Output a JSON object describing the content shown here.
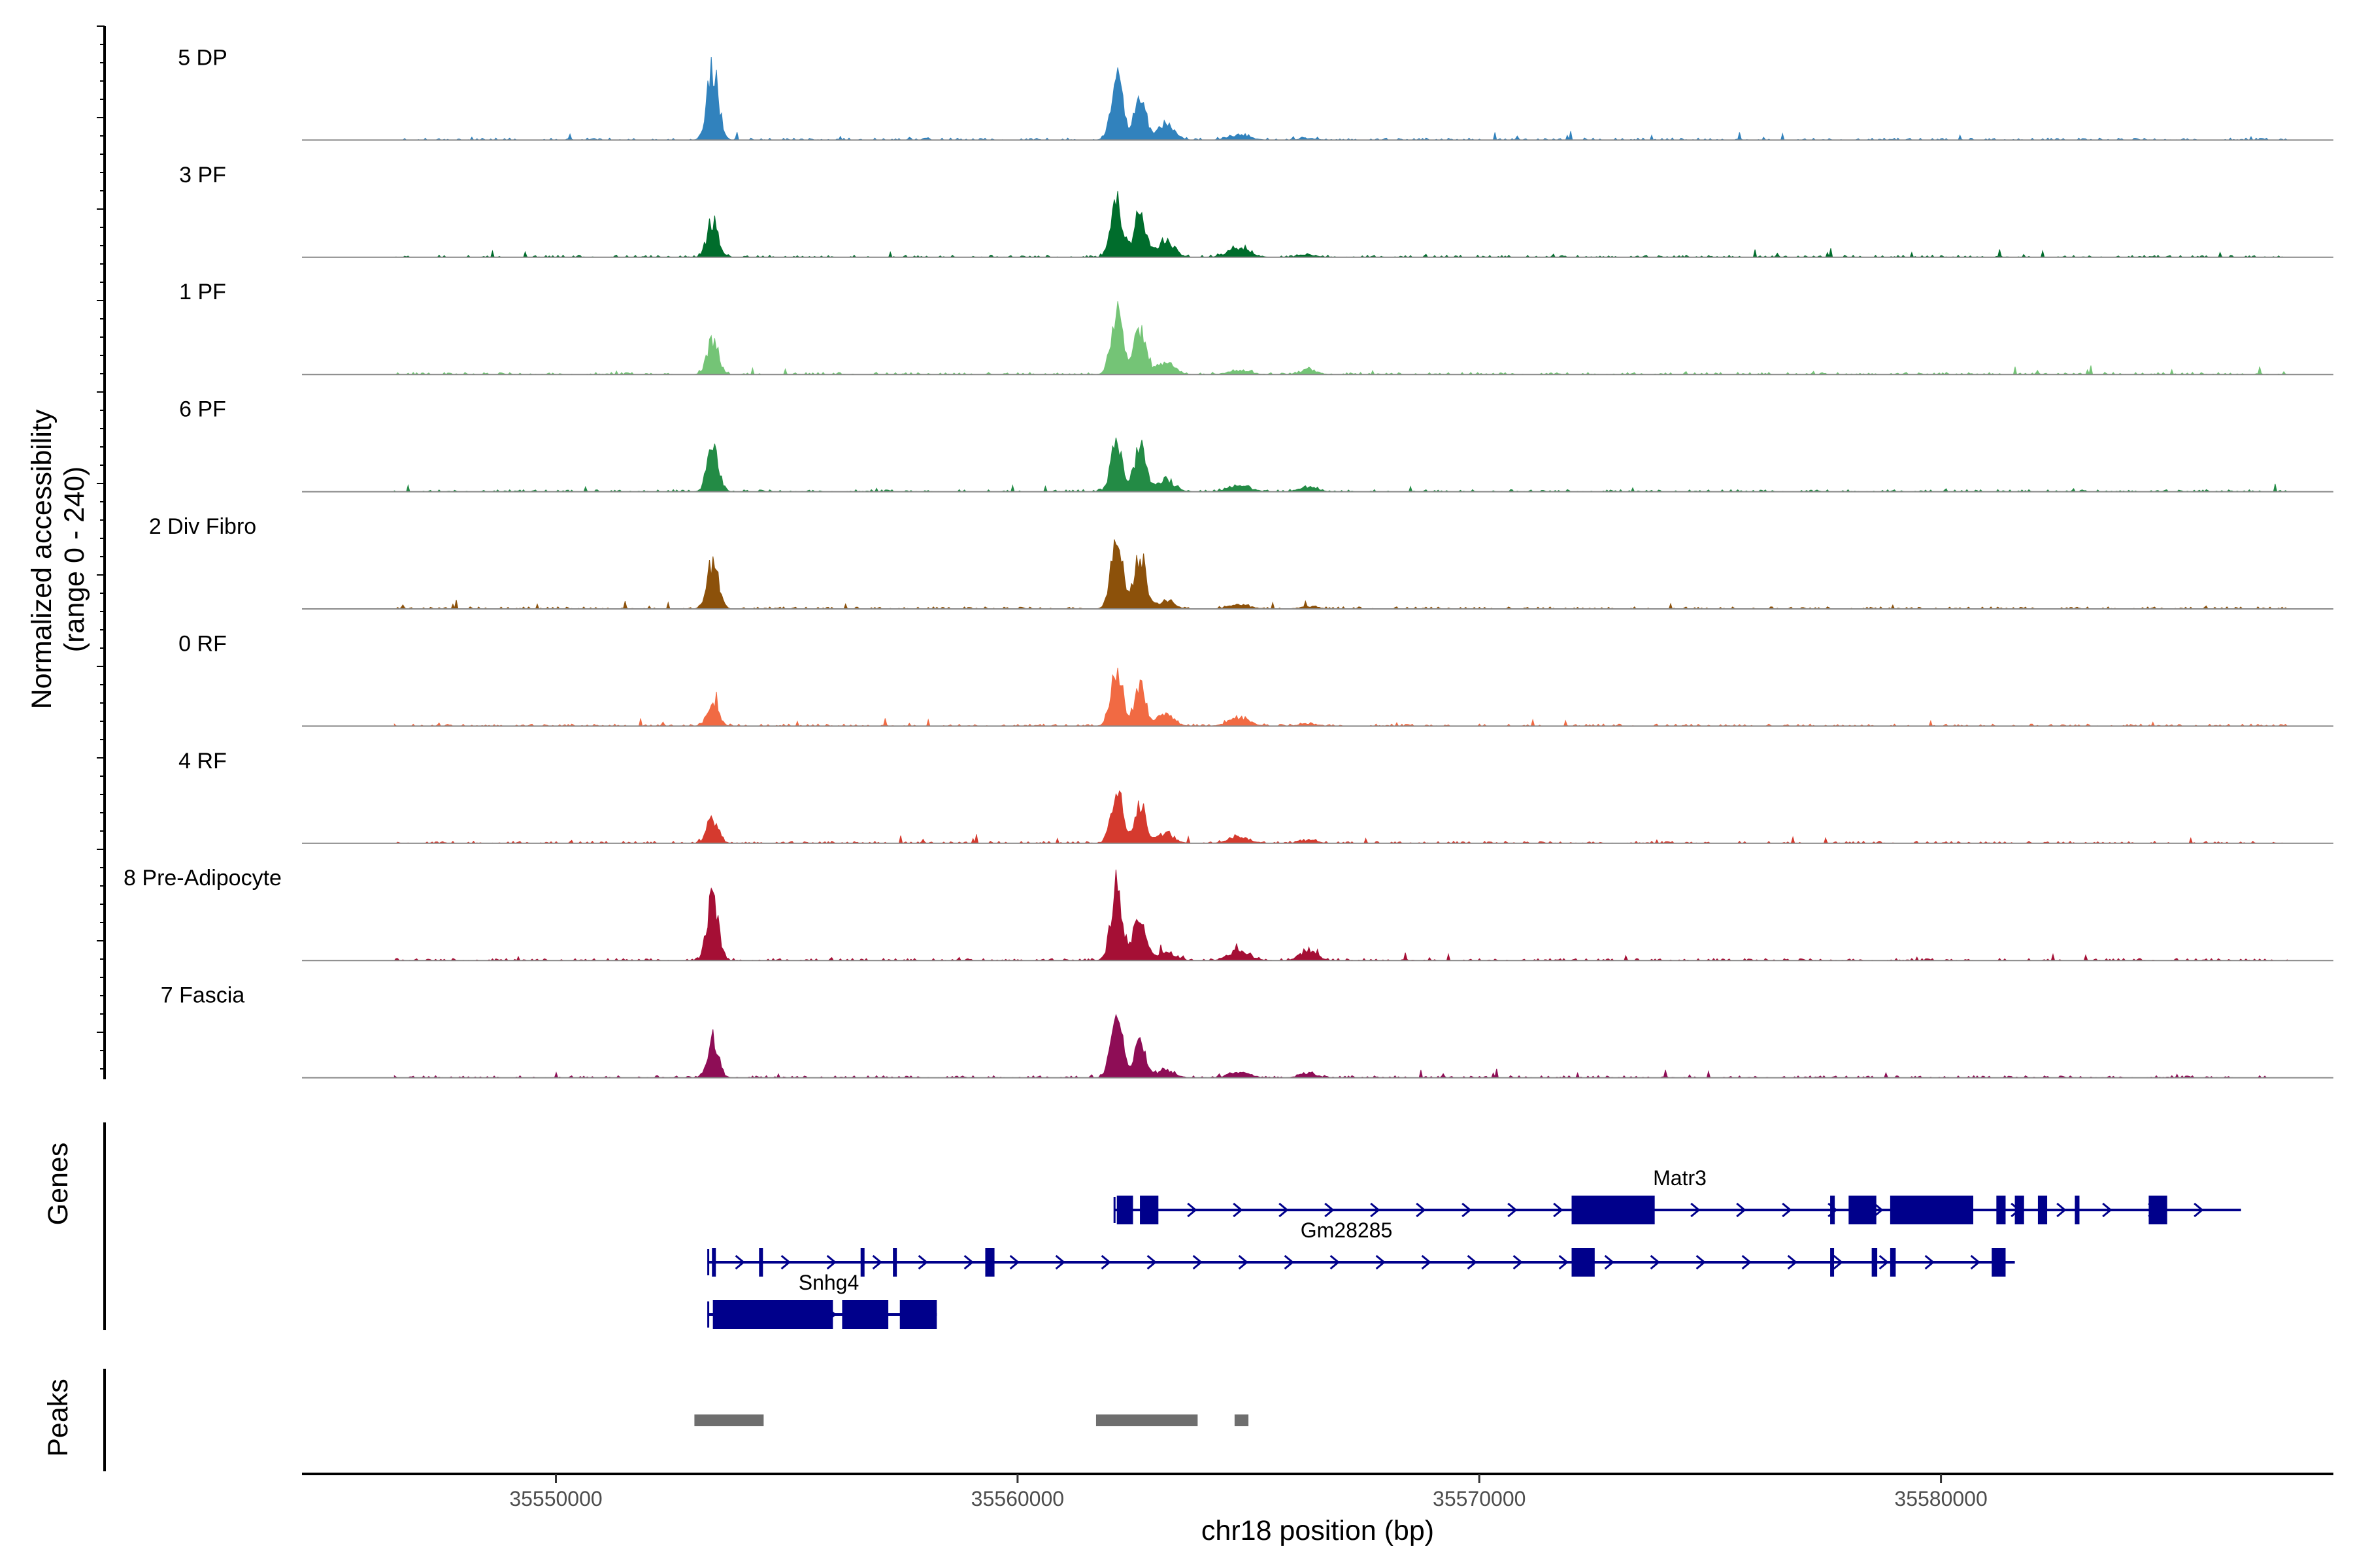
{
  "chart_data": {
    "type": "area",
    "title": "",
    "xlabel": "chr18 position (bp)",
    "ylabel": "Normalized accessibility",
    "ylabel_sub": "(range 0 - 240)",
    "xlim": [
      35544500,
      35588500
    ],
    "ylim": [
      0,
      240
    ],
    "x_ticks": [
      35550000,
      35560000,
      35570000,
      35580000
    ],
    "x_tick_labels": [
      "35550000",
      "35560000",
      "35570000",
      "35580000"
    ],
    "tracks": [
      {
        "name": "5 DP",
        "color": "#3182bd",
        "heights": [
          0.85,
          0.78,
          0.55,
          0.2,
          0.06,
          0.02
        ]
      },
      {
        "name": "3 PF",
        "color": "#006d2c",
        "heights": [
          0.45,
          0.65,
          0.55,
          0.2,
          0.12,
          0.03
        ]
      },
      {
        "name": "1 PF",
        "color": "#74c476",
        "heights": [
          0.42,
          0.72,
          0.58,
          0.15,
          0.05,
          0.06
        ]
      },
      {
        "name": "6 PF",
        "color": "#238b45",
        "heights": [
          0.52,
          0.6,
          0.55,
          0.14,
          0.08,
          0.06
        ]
      },
      {
        "name": "2 Div Fibro",
        "color": "#8c510a",
        "heights": [
          0.58,
          0.8,
          0.66,
          0.1,
          0.05,
          0.03
        ]
      },
      {
        "name": "0 RF",
        "color": "#f16a43",
        "heights": [
          0.3,
          0.68,
          0.47,
          0.14,
          0.1,
          0.03
        ]
      },
      {
        "name": "4 RF",
        "color": "#d53a2e",
        "heights": [
          0.3,
          0.63,
          0.48,
          0.12,
          0.08,
          0.04
        ]
      },
      {
        "name": "8 Pre-Adipocyte",
        "color": "#a50f35",
        "heights": [
          0.78,
          0.88,
          0.64,
          0.1,
          0.1,
          0.12
        ]
      },
      {
        "name": "7 Fascia",
        "color": "#8e0d56",
        "heights": [
          0.45,
          0.72,
          0.44,
          0.1,
          0.06,
          0.06
        ]
      }
    ],
    "peak_centers": [
      35553400,
      35562150,
      35562650,
      35563200,
      35564800,
      35566300
    ],
    "peak_widths": [
      170,
      180,
      170,
      260,
      320,
      250
    ],
    "genes_label": "Genes",
    "genes": [
      {
        "name": "Matr3",
        "strand": "+",
        "start": 35562100,
        "end": 35586500,
        "exons": [
          [
            35562150,
            35562500
          ],
          [
            35562650,
            35563050
          ],
          [
            35572000,
            35573800
          ],
          [
            35577600,
            35577700
          ],
          [
            35578000,
            35578600
          ],
          [
            35578900,
            35580700
          ],
          [
            35581200,
            35581400
          ],
          [
            35581600,
            35581800
          ],
          [
            35582100,
            35582300
          ],
          [
            35582900,
            35583000
          ],
          [
            35584500,
            35584900
          ]
        ]
      },
      {
        "name": "Gm28285",
        "strand": "+",
        "start": 35553300,
        "end": 35581600,
        "exons": [
          [
            35553380,
            35553450
          ],
          [
            35554400,
            35554480
          ],
          [
            35556600,
            35556680
          ],
          [
            35557300,
            35557380
          ],
          [
            35559300,
            35559500
          ],
          [
            35572000,
            35572500
          ],
          [
            35577600,
            35577680
          ],
          [
            35578500,
            35578620
          ],
          [
            35578900,
            35579020
          ],
          [
            35581100,
            35581400
          ]
        ]
      },
      {
        "name": "Snhg4",
        "strand": "+",
        "start": 35553300,
        "end": 35558250,
        "exons": [
          [
            35553400,
            35556000
          ],
          [
            35556200,
            35557200
          ],
          [
            35557450,
            35558250
          ]
        ]
      }
    ],
    "peaks_label": "Peaks",
    "peaks": [
      [
        35553000,
        35554500
      ],
      [
        35561700,
        35563900
      ],
      [
        35564700,
        35565000
      ]
    ]
  }
}
